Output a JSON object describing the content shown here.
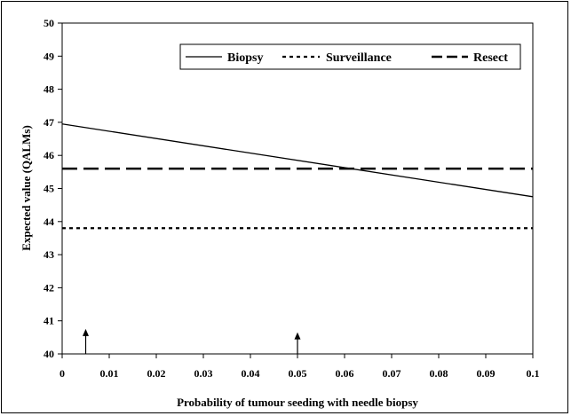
{
  "chart_data": {
    "type": "line",
    "xlabel": "Probability of tumour seeding with needle biopsy",
    "ylabel": "Expected value (QALMs)",
    "xlim": [
      0,
      0.1
    ],
    "ylim": [
      40,
      50
    ],
    "x_ticks": [
      "0",
      "0.01",
      "0.02",
      "0.03",
      "0.04",
      "0.05",
      "0.06",
      "0.07",
      "0.08",
      "0.09",
      "0.1"
    ],
    "y_ticks": [
      "40",
      "41",
      "42",
      "43",
      "44",
      "45",
      "46",
      "47",
      "48",
      "49",
      "50"
    ],
    "grid": false,
    "legend_position": "top-right",
    "series": [
      {
        "name": "Biopsy",
        "style": "solid",
        "x": [
          0,
          0.1
        ],
        "y": [
          46.95,
          44.75
        ]
      },
      {
        "name": "Surveillance",
        "style": "dotted",
        "x": [
          0,
          0.1
        ],
        "y": [
          43.8,
          43.8
        ]
      },
      {
        "name": "Resect",
        "style": "dashed",
        "x": [
          0,
          0.1
        ],
        "y": [
          45.6,
          45.6
        ]
      }
    ],
    "markers": [
      {
        "type": "arrow",
        "x": 0.005,
        "y_from": 40,
        "y_to": 40.7
      },
      {
        "type": "arrow",
        "x": 0.05,
        "y_from": 40,
        "y_to": 40.6
      }
    ]
  }
}
